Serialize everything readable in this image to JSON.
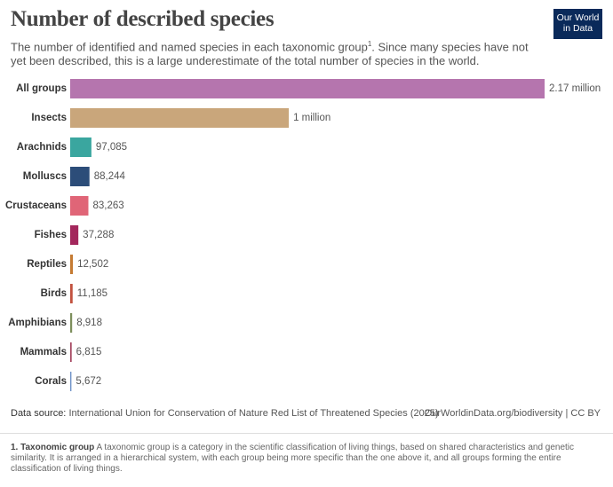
{
  "chart_data": {
    "type": "bar",
    "orientation": "horizontal",
    "title": "Number of described species",
    "subtitle": "The number of identified and named species in each taxonomic group",
    "subtitle_sup": "1",
    "subtitle_rest": ". Since many species have not yet been described, this is a large underestimate of the total number of species in the world.",
    "logo": [
      "Our World",
      "in Data"
    ],
    "categories": [
      "All groups",
      "Insects",
      "Arachnids",
      "Molluscs",
      "Crustaceans",
      "Fishes",
      "Reptiles",
      "Birds",
      "Amphibians",
      "Mammals",
      "Corals"
    ],
    "values": [
      2170000,
      1000000,
      97085,
      88244,
      83263,
      37288,
      12502,
      11185,
      8918,
      6815,
      5672
    ],
    "value_labels": [
      "2.17 million",
      "1 million",
      "97,085",
      "88,244",
      "83,263",
      "37,288",
      "12,502",
      "11,185",
      "8,918",
      "6,815",
      "5,672"
    ],
    "colors": [
      "#b575ae",
      "#c9a67b",
      "#3aa69f",
      "#2c4d79",
      "#e06577",
      "#a3275c",
      "#c57b33",
      "#c2513e",
      "#7d8f5c",
      "#a4445f",
      "#6f93c8"
    ],
    "source_label": "Data source:",
    "source": "International Union for Conservation of Nature Red List of Threatened Species (2025)",
    "site": "OurWorldinData.org/biodiversity | CC BY",
    "footnote_title": "1. Taxonomic group",
    "footnote": "A taxonomic group is a category in the scientific classification of living things, based on shared characteristics and genetic similarity. It is arranged in a hierarchical system, with each group being more specific than the one above it, and all groups forming the entire classification of living things."
  }
}
